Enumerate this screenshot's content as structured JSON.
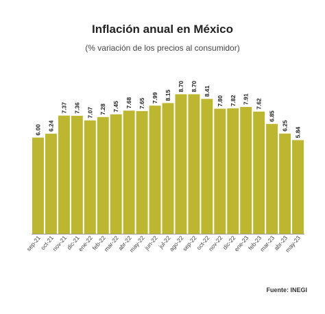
{
  "title": "Inflación anual en México",
  "subtitle": "(% variación de los precios al consumidor)",
  "source": "Fuente: INEGI",
  "colors": {
    "bar": "#bdb631",
    "bar_edge": "#a9a22a",
    "baseline": "#999999"
  },
  "chart_data": {
    "type": "bar",
    "title": "Inflación anual en México",
    "subtitle": "(% variación de los precios al consumidor)",
    "xlabel": "",
    "ylabel": "",
    "ylim": [
      0,
      11.5
    ],
    "grid": false,
    "categories": [
      "sep-21",
      "oct-21",
      "nov-21",
      "dic-21",
      "ene-22",
      "feb-22",
      "mar-22",
      "abr-22",
      "may-22",
      "jun-22",
      "jul-22",
      "ago-22",
      "sep-22",
      "oct-22",
      "nov-22",
      "dic-22",
      "ene-23",
      "feb-23",
      "mar-23",
      "abr-23",
      "may-23"
    ],
    "values": [
      6.0,
      6.24,
      7.37,
      7.36,
      7.07,
      7.28,
      7.45,
      7.68,
      7.65,
      7.99,
      8.15,
      8.7,
      8.7,
      8.41,
      7.8,
      7.82,
      7.91,
      7.62,
      6.85,
      6.25,
      5.84
    ],
    "value_labels": [
      "6.00",
      "6.24",
      "7.37",
      "7.36",
      "7.07",
      "7.28",
      "7.45",
      "7.68",
      "7.65",
      "7.99",
      "8.15",
      "8.70",
      "8.70",
      "8.41",
      "7.80",
      "7.82",
      "7.91",
      "7.62",
      "6.85",
      "6.25",
      "5.84"
    ]
  }
}
